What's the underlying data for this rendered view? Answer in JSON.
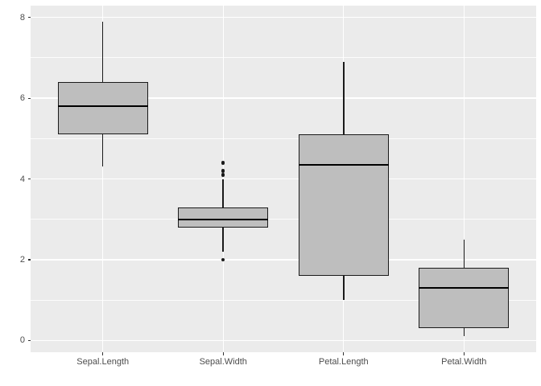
{
  "figure": {
    "background": "#FFFFFF",
    "title": ""
  },
  "chart_data": {
    "type": "boxplot",
    "title": "",
    "xlabel": "",
    "ylabel": "",
    "legend": "none",
    "grid": "major-and-minor-horizontal-white",
    "categories": [
      "Sepal.Length",
      "Sepal.Width",
      "Petal.Length",
      "Petal.Width"
    ],
    "series": [
      {
        "category": "Sepal.Length",
        "whisker_low": 4.3,
        "q1": 5.1,
        "median": 5.8,
        "q3": 6.4,
        "whisker_high": 7.9,
        "outliers": []
      },
      {
        "category": "Sepal.Width",
        "whisker_low": 2.2,
        "q1": 2.8,
        "median": 3.0,
        "q3": 3.3,
        "whisker_high": 4.0,
        "outliers": [
          4.4,
          4.2,
          4.1,
          2.0
        ]
      },
      {
        "category": "Petal.Length",
        "whisker_low": 1.0,
        "q1": 1.6,
        "median": 4.35,
        "q3": 5.1,
        "whisker_high": 6.9,
        "outliers": []
      },
      {
        "category": "Petal.Width",
        "whisker_low": 0.1,
        "q1": 0.3,
        "median": 1.3,
        "q3": 1.8,
        "whisker_high": 2.5,
        "outliers": []
      }
    ],
    "y_axis": {
      "tick_labels": [
        "0",
        "2",
        "4",
        "6",
        "8"
      ],
      "tick_values": [
        0,
        2,
        4,
        6,
        8
      ],
      "minor_values": [
        1,
        3,
        5,
        7
      ],
      "ylim": [
        -0.29,
        8.29
      ]
    },
    "x_axis": {
      "tick_labels": [
        "Sepal.Length",
        "Sepal.Width",
        "Petal.Length",
        "Petal.Width"
      ]
    },
    "style": {
      "panel_bg": "#EBEBEB",
      "grid_color": "#FFFFFF",
      "box_fill": "#BEBEBE",
      "line_color": "#1A1A1A",
      "median_color": "#000000",
      "axis_text_color": "#4D4D4D",
      "tick_mark_color": "#333333"
    }
  }
}
